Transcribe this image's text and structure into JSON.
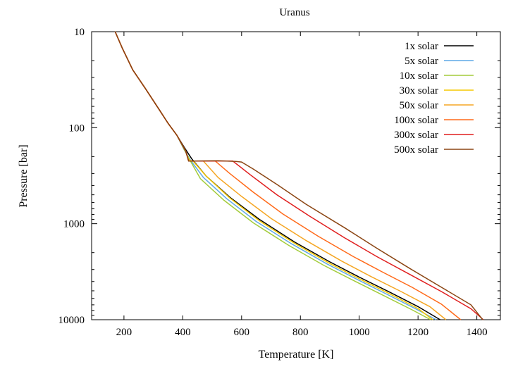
{
  "chart_data": {
    "type": "line",
    "title": "Uranus",
    "xlabel": "Temperature [K]",
    "ylabel": "Pressure [bar]",
    "xlim": [
      90,
      1480
    ],
    "ylim": [
      10,
      10000
    ],
    "y_scale": "log",
    "x_ticks": [
      200,
      400,
      600,
      800,
      1000,
      1200,
      1400
    ],
    "y_ticks": [
      10,
      100,
      1000,
      10000
    ],
    "x_tick_labels": [
      "200",
      "400",
      "600",
      "800",
      "1000",
      "1200",
      "1400"
    ],
    "y_tick_labels": [
      "10",
      "100",
      "1000",
      "10000"
    ],
    "grid": false,
    "legend_position": "top-right",
    "series": [
      {
        "name": "1x solar",
        "color": "#000000",
        "points": [
          [
            170,
            10
          ],
          [
            195,
            15
          ],
          [
            230,
            25
          ],
          [
            275,
            40
          ],
          [
            320,
            65
          ],
          [
            350,
            90
          ],
          [
            380,
            120
          ],
          [
            405,
            160
          ],
          [
            430,
            210
          ],
          [
            480,
            320
          ],
          [
            560,
            530
          ],
          [
            660,
            900
          ],
          [
            780,
            1550
          ],
          [
            900,
            2500
          ],
          [
            1000,
            3600
          ],
          [
            1100,
            5100
          ],
          [
            1200,
            7300
          ],
          [
            1275,
            10000
          ]
        ]
      },
      {
        "name": "5x solar",
        "color": "#5fa8e6",
        "points": [
          [
            170,
            10
          ],
          [
            195,
            15
          ],
          [
            230,
            25
          ],
          [
            275,
            40
          ],
          [
            320,
            65
          ],
          [
            350,
            90
          ],
          [
            380,
            120
          ],
          [
            405,
            170
          ],
          [
            425,
            215
          ],
          [
            470,
            330
          ],
          [
            550,
            550
          ],
          [
            650,
            950
          ],
          [
            770,
            1620
          ],
          [
            890,
            2620
          ],
          [
            990,
            3760
          ],
          [
            1090,
            5350
          ],
          [
            1190,
            7650
          ],
          [
            1262,
            10000
          ]
        ]
      },
      {
        "name": "10x solar",
        "color": "#a3cc3a",
        "points": [
          [
            170,
            10
          ],
          [
            195,
            15
          ],
          [
            230,
            25
          ],
          [
            275,
            40
          ],
          [
            320,
            65
          ],
          [
            350,
            90
          ],
          [
            380,
            120
          ],
          [
            410,
            180
          ],
          [
            425,
            220
          ],
          [
            460,
            340
          ],
          [
            540,
            570
          ],
          [
            640,
            980
          ],
          [
            760,
            1680
          ],
          [
            880,
            2720
          ],
          [
            980,
            3900
          ],
          [
            1080,
            5550
          ],
          [
            1180,
            7900
          ],
          [
            1243,
            10000
          ]
        ]
      },
      {
        "name": "30x solar",
        "color": "#f5c800",
        "points": [
          [
            170,
            10
          ],
          [
            195,
            15
          ],
          [
            230,
            25
          ],
          [
            275,
            40
          ],
          [
            320,
            65
          ],
          [
            350,
            90
          ],
          [
            380,
            120
          ],
          [
            410,
            175
          ],
          [
            420,
            215
          ],
          [
            436,
            225
          ],
          [
            480,
            320
          ],
          [
            560,
            540
          ],
          [
            660,
            930
          ],
          [
            780,
            1600
          ],
          [
            900,
            2600
          ],
          [
            1000,
            3740
          ],
          [
            1100,
            5300
          ],
          [
            1200,
            7650
          ],
          [
            1250,
            10000
          ]
        ]
      },
      {
        "name": "50x solar",
        "color": "#f5a623",
        "points": [
          [
            170,
            10
          ],
          [
            195,
            15
          ],
          [
            230,
            25
          ],
          [
            275,
            40
          ],
          [
            320,
            65
          ],
          [
            350,
            90
          ],
          [
            380,
            120
          ],
          [
            410,
            175
          ],
          [
            420,
            223
          ],
          [
            470,
            223
          ],
          [
            520,
            330
          ],
          [
            600,
            520
          ],
          [
            700,
            880
          ],
          [
            820,
            1500
          ],
          [
            940,
            2450
          ],
          [
            1040,
            3550
          ],
          [
            1140,
            5050
          ],
          [
            1240,
            7300
          ],
          [
            1295,
            10000
          ]
        ]
      },
      {
        "name": "100x solar",
        "color": "#ff6a1a",
        "points": [
          [
            170,
            10
          ],
          [
            195,
            15
          ],
          [
            230,
            25
          ],
          [
            275,
            40
          ],
          [
            320,
            65
          ],
          [
            350,
            90
          ],
          [
            380,
            120
          ],
          [
            410,
            175
          ],
          [
            420,
            223
          ],
          [
            510,
            222
          ],
          [
            560,
            300
          ],
          [
            640,
            470
          ],
          [
            740,
            790
          ],
          [
            860,
            1350
          ],
          [
            980,
            2200
          ],
          [
            1080,
            3200
          ],
          [
            1180,
            4600
          ],
          [
            1280,
            6900
          ],
          [
            1345,
            10000
          ]
        ]
      },
      {
        "name": "300x solar",
        "color": "#e01e1e",
        "points": [
          [
            170,
            10
          ],
          [
            195,
            15
          ],
          [
            230,
            25
          ],
          [
            275,
            40
          ],
          [
            320,
            65
          ],
          [
            350,
            90
          ],
          [
            380,
            120
          ],
          [
            410,
            175
          ],
          [
            420,
            223
          ],
          [
            550,
            222
          ],
          [
            570,
            222
          ],
          [
            630,
            310
          ],
          [
            720,
            500
          ],
          [
            830,
            830
          ],
          [
            950,
            1400
          ],
          [
            1060,
            2200
          ],
          [
            1170,
            3350
          ],
          [
            1280,
            5100
          ],
          [
            1380,
            7700
          ],
          [
            1422,
            10000
          ]
        ]
      },
      {
        "name": "500x solar",
        "color": "#8b4513",
        "points": [
          [
            170,
            10
          ],
          [
            195,
            15
          ],
          [
            230,
            25
          ],
          [
            275,
            40
          ],
          [
            320,
            65
          ],
          [
            350,
            90
          ],
          [
            380,
            120
          ],
          [
            410,
            175
          ],
          [
            420,
            223
          ],
          [
            520,
            221
          ],
          [
            580,
            225
          ],
          [
            600,
            228
          ],
          [
            640,
            270
          ],
          [
            720,
            390
          ],
          [
            820,
            630
          ],
          [
            950,
            1100
          ],
          [
            1060,
            1800
          ],
          [
            1170,
            2900
          ],
          [
            1280,
            4600
          ],
          [
            1380,
            7000
          ],
          [
            1420,
            10000
          ]
        ]
      }
    ]
  }
}
